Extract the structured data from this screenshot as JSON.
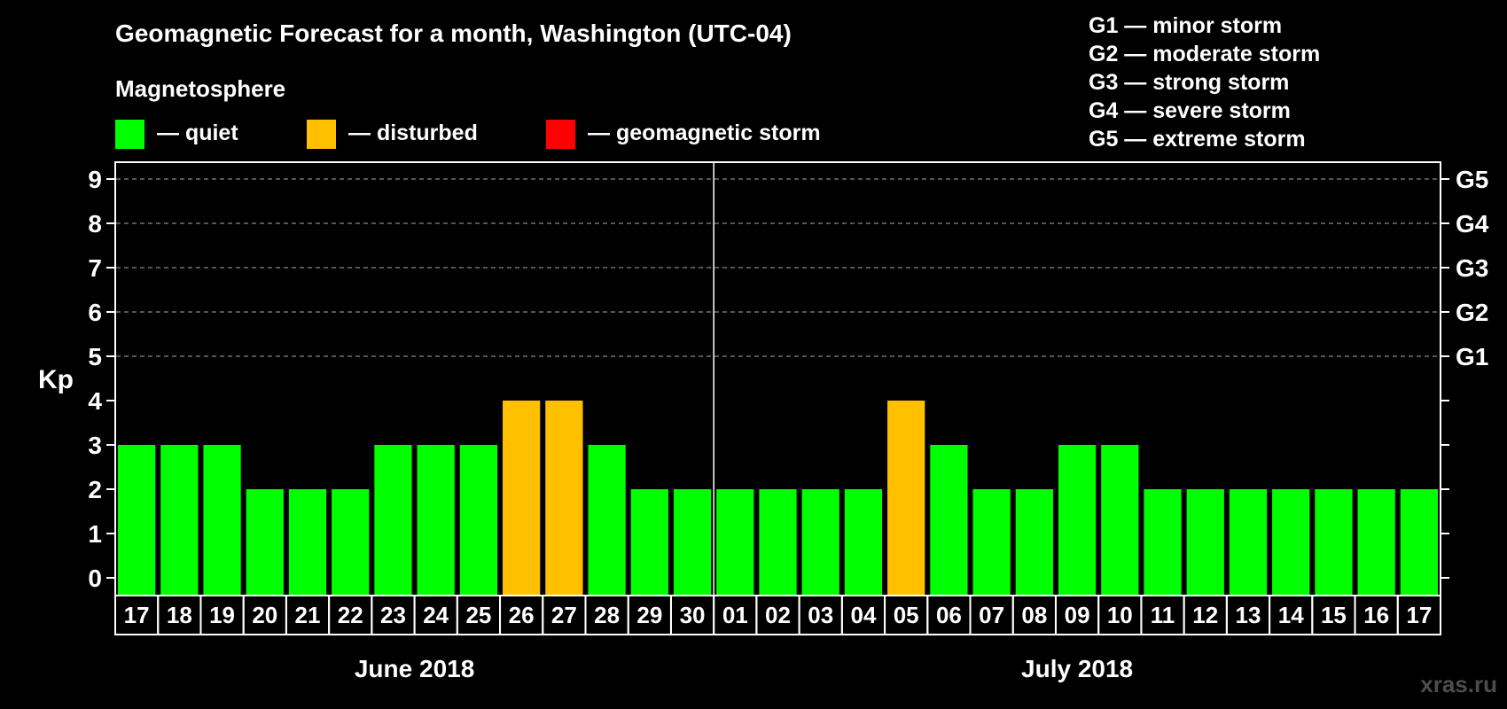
{
  "chart_data": {
    "type": "bar",
    "title": "Geomagnetic Forecast for a month, Washington (UTC-04)",
    "legend": {
      "heading": "Magnetosphere",
      "items": [
        {
          "label": "— quiet",
          "color": "#00ff00"
        },
        {
          "label": "— disturbed",
          "color": "#ffc000"
        },
        {
          "label": "— geomagnetic storm",
          "color": "#ff0000"
        }
      ],
      "placement": "top-left"
    },
    "scale_legend": [
      "G1 — minor storm",
      "G2 — moderate storm",
      "G3 — strong storm",
      "G4 — severe storm",
      "G5 — extreme storm"
    ],
    "ylabel": "Kp",
    "ylim": [
      0,
      9
    ],
    "yticks": [
      "0",
      "1",
      "2",
      "3",
      "4",
      "5",
      "6",
      "7",
      "8",
      "9"
    ],
    "right_ticks": [
      {
        "y": 5,
        "label": "G1"
      },
      {
        "y": 6,
        "label": "G2"
      },
      {
        "y": 7,
        "label": "G3"
      },
      {
        "y": 8,
        "label": "G4"
      },
      {
        "y": 9,
        "label": "G5"
      }
    ],
    "grid": "dashed horizontal lines at Kp 5-9",
    "categories": [
      "17",
      "18",
      "19",
      "20",
      "21",
      "22",
      "23",
      "24",
      "25",
      "26",
      "27",
      "28",
      "29",
      "30",
      "01",
      "02",
      "03",
      "04",
      "05",
      "06",
      "07",
      "08",
      "09",
      "10",
      "11",
      "12",
      "13",
      "14",
      "15",
      "16",
      "17"
    ],
    "values": [
      3,
      3,
      3,
      2,
      2,
      2,
      3,
      3,
      3,
      4,
      4,
      3,
      2,
      2,
      2,
      2,
      2,
      2,
      4,
      3,
      2,
      2,
      3,
      3,
      2,
      2,
      2,
      2,
      2,
      2,
      2
    ],
    "bar_status": [
      "quiet",
      "quiet",
      "quiet",
      "quiet",
      "quiet",
      "quiet",
      "quiet",
      "quiet",
      "quiet",
      "disturbed",
      "disturbed",
      "quiet",
      "quiet",
      "quiet",
      "quiet",
      "quiet",
      "quiet",
      "quiet",
      "disturbed",
      "quiet",
      "quiet",
      "quiet",
      "quiet",
      "quiet",
      "quiet",
      "quiet",
      "quiet",
      "quiet",
      "quiet",
      "quiet",
      "quiet"
    ],
    "months": [
      {
        "label": "June 2018",
        "from": 0,
        "to": 13
      },
      {
        "label": "July 2018",
        "from": 14,
        "to": 30
      }
    ],
    "colors": {
      "quiet": "#00ff00",
      "disturbed": "#ffc000",
      "storm": "#ff0000",
      "background": "#000000",
      "axis": "#ffffff",
      "grid": "#888888"
    }
  },
  "watermark": "xras.ru"
}
